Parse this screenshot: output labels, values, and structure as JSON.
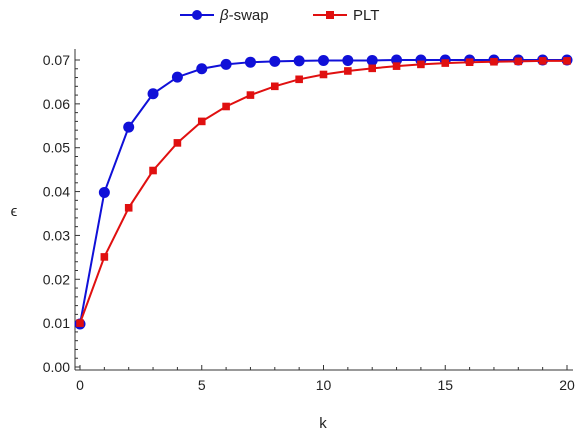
{
  "chart_data": {
    "type": "line",
    "title": "",
    "xlabel": "k",
    "ylabel": "ϵ",
    "xlim": [
      -0.3,
      20.3
    ],
    "ylim": [
      0.0,
      0.071
    ],
    "xticks": [
      0,
      5,
      10,
      15,
      20
    ],
    "xtick_labels": [
      "0",
      "5",
      "10",
      "15",
      "20"
    ],
    "yticks": [
      0.0,
      0.01,
      0.02,
      0.03,
      0.04,
      0.05,
      0.06,
      0.07
    ],
    "ytick_labels": [
      "0.00",
      "0.01",
      "0.02",
      "0.03",
      "0.04",
      "0.05",
      "0.06",
      "0.07"
    ],
    "grid": false,
    "legend_position": "top-center",
    "x": [
      0,
      1,
      2,
      3,
      4,
      5,
      6,
      7,
      8,
      9,
      10,
      11,
      12,
      13,
      14,
      15,
      16,
      17,
      18,
      19,
      20
    ],
    "series": [
      {
        "name_symbol": "β",
        "name_text": "-swap",
        "color": "#1010d8",
        "marker": "circle",
        "values": [
          0.0098,
          0.0398,
          0.0547,
          0.0623,
          0.0661,
          0.068,
          0.069,
          0.0695,
          0.0697,
          0.0698,
          0.0699,
          0.0699,
          0.0699,
          0.07,
          0.07,
          0.07,
          0.07,
          0.07,
          0.07,
          0.07,
          0.07
        ]
      },
      {
        "name_text": "PLT",
        "color": "#e01010",
        "marker": "square",
        "values": [
          0.01,
          0.0251,
          0.0363,
          0.0448,
          0.0511,
          0.056,
          0.0594,
          0.062,
          0.064,
          0.0656,
          0.0667,
          0.0675,
          0.0681,
          0.0686,
          0.069,
          0.0693,
          0.0695,
          0.0696,
          0.0697,
          0.0698,
          0.0698
        ]
      }
    ]
  }
}
